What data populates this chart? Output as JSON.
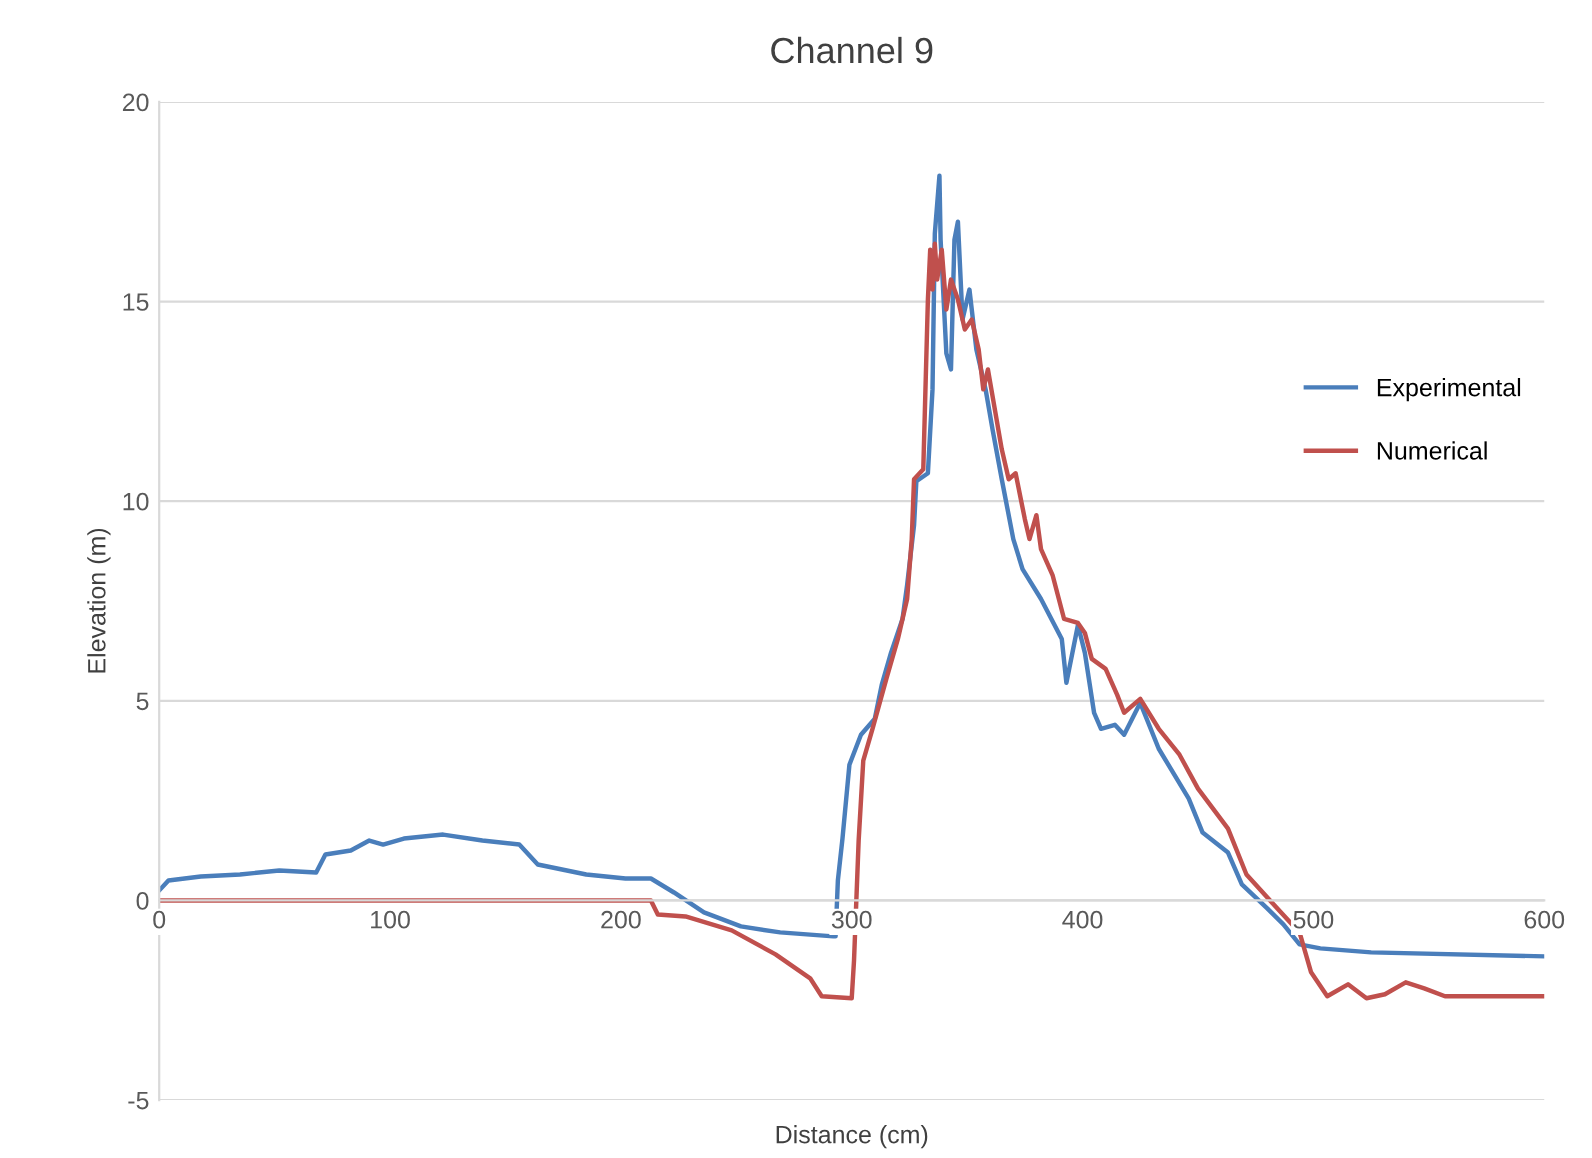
{
  "chart_data": {
    "type": "line",
    "title": "Channel 9",
    "xlabel": "Distance (cm)",
    "ylabel": "Elevation (m)",
    "xlim": [
      0,
      600
    ],
    "xticks": [
      0,
      100,
      200,
      300,
      400,
      500,
      600
    ],
    "ylim": [
      -5,
      20
    ],
    "yticks": [
      -5,
      0,
      5,
      10,
      15,
      20
    ],
    "grid": "y",
    "legend": "right",
    "marker": "none",
    "line_style": "solid",
    "series": [
      {
        "name": "Experimental",
        "color": "#4a7ebb",
        "x": [
          0,
          4,
          18,
          35,
          52,
          68,
          72,
          83,
          91,
          97,
          106,
          123,
          140,
          156,
          164,
          185,
          202,
          213,
          223,
          236,
          252,
          269,
          292,
          293,
          294,
          296,
          299,
          304,
          310,
          313,
          317,
          322,
          324,
          327,
          328,
          333,
          335,
          336,
          338,
          338.5,
          341,
          343,
          344.5,
          346,
          348,
          351,
          354,
          358,
          361,
          365,
          370,
          374,
          382,
          391,
          393,
          398,
          401,
          405,
          408,
          414,
          418,
          425,
          433,
          446,
          452,
          463,
          469,
          480,
          487,
          494,
          503,
          525,
          600
        ],
        "values": [
          0.25,
          0.5,
          0.6,
          0.65,
          0.75,
          0.7,
          1.15,
          1.25,
          1.5,
          1.4,
          1.55,
          1.65,
          1.5,
          1.4,
          0.9,
          0.65,
          0.55,
          0.55,
          0.2,
          -0.3,
          -0.65,
          -0.8,
          -0.9,
          -0.9,
          0.5,
          1.55,
          3.4,
          4.15,
          4.55,
          5.4,
          6.2,
          7.05,
          7.9,
          9.4,
          10.5,
          10.7,
          12.8,
          16.7,
          18.15,
          16.55,
          13.7,
          13.3,
          16.55,
          17.0,
          14.55,
          15.3,
          13.8,
          12.8,
          11.8,
          10.55,
          9.05,
          8.3,
          7.55,
          6.55,
          5.45,
          6.9,
          6.2,
          4.7,
          4.3,
          4.4,
          4.15,
          4.95,
          3.8,
          2.55,
          1.7,
          1.2,
          0.4,
          -0.2,
          -0.6,
          -1.1,
          -1.2,
          -1.3,
          -1.4
        ]
      },
      {
        "name": "Numerical",
        "color": "#c0504d",
        "x": [
          0,
          213,
          216,
          228,
          248,
          267,
          282,
          287,
          300,
          301,
          303,
          305,
          309,
          315,
          320,
          324,
          326,
          327,
          331,
          333,
          334,
          335,
          336,
          337,
          339,
          341,
          343,
          346,
          349,
          352,
          355,
          357,
          359,
          362,
          365,
          368,
          371,
          375,
          377,
          380,
          382,
          387,
          392,
          398,
          401,
          404,
          410,
          415,
          418,
          425,
          433,
          442,
          450,
          463,
          471,
          482,
          494,
          499,
          506,
          515,
          523,
          531,
          540,
          548,
          557,
          600
        ],
        "values": [
          0,
          0,
          -0.35,
          -0.4,
          -0.75,
          -1.35,
          -1.95,
          -2.4,
          -2.45,
          -1.5,
          1.5,
          3.5,
          4.3,
          5.55,
          6.55,
          7.55,
          9.05,
          10.55,
          10.8,
          15.05,
          16.3,
          15.3,
          16.45,
          15.55,
          16.3,
          14.8,
          15.55,
          15.05,
          14.3,
          14.55,
          13.8,
          12.8,
          13.3,
          12.3,
          11.3,
          10.55,
          10.7,
          9.55,
          9.05,
          9.65,
          8.8,
          8.15,
          7.05,
          6.95,
          6.7,
          6.05,
          5.8,
          5.15,
          4.7,
          5.05,
          4.3,
          3.65,
          2.8,
          1.8,
          0.65,
          -0.05,
          -0.8,
          -1.8,
          -2.4,
          -2.1,
          -2.45,
          -2.35,
          -2.05,
          -2.2,
          -2.4,
          -2.4
        ]
      }
    ]
  }
}
